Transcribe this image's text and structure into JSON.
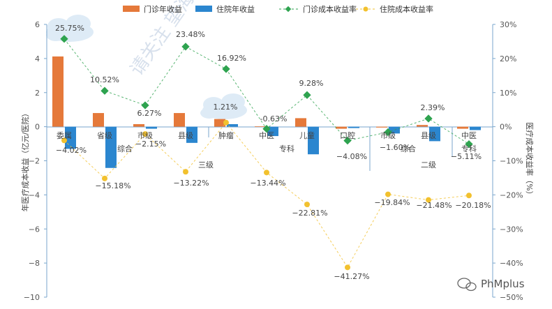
{
  "chart_data": {
    "type": "bar",
    "categories": [
      "委属",
      "省级",
      "市级",
      "县级",
      "肿瘤",
      "中医",
      "儿童",
      "口腔",
      "市级",
      "县级",
      "中医"
    ],
    "group_labels": [
      {
        "text": "综合",
        "from": 0,
        "to": 3
      },
      {
        "text": "三级",
        "from": 0,
        "to": 7
      },
      {
        "text": "专科",
        "from": 4,
        "to": 7
      },
      {
        "text": "综合",
        "from": 8,
        "to": 9
      },
      {
        "text": "二级",
        "from": 8,
        "to": 10
      },
      {
        "text": "专科",
        "from": 10,
        "to": 10
      }
    ],
    "series": [
      {
        "name": "门诊年收益",
        "kind": "bar",
        "axis": "left",
        "color": "#e5793a",
        "values": [
          4.12,
          0.8,
          0.15,
          0.8,
          0.45,
          0.02,
          0.5,
          -0.12,
          -0.05,
          0.1,
          -0.12
        ]
      },
      {
        "name": "住院年收益",
        "kind": "bar",
        "axis": "left",
        "color": "#2b86cf",
        "values": [
          -1.3,
          -2.42,
          -0.12,
          -0.95,
          0.15,
          -0.55,
          -1.62,
          -0.08,
          -0.4,
          -0.85,
          -0.2
        ]
      },
      {
        "name": "门诊成本收益率",
        "kind": "line",
        "axis": "right",
        "color": "#2ea34f",
        "values": [
          25.75,
          10.52,
          6.27,
          23.48,
          16.92,
          -0.63,
          9.28,
          -4.08,
          -1.6,
          2.39,
          -5.11
        ],
        "labels": [
          "25.75%",
          "10.52%",
          "6.27%",
          "23.48%",
          "16.92%",
          "-0.63%",
          "9.28%",
          "−4.08%",
          "−1.60%",
          "2.39%",
          "−5.11%"
        ]
      },
      {
        "name": "住院成本收益率",
        "kind": "line",
        "axis": "right",
        "color": "#f2c12e",
        "values": [
          -4.02,
          -15.18,
          -2.15,
          -13.22,
          1.21,
          -13.44,
          -22.81,
          -41.27,
          -19.84,
          -21.48,
          -20.18
        ],
        "labels": [
          "−4.02%",
          "−15.18%",
          "−2.15%",
          "−13.22%",
          "1.21%",
          "−13.44%",
          "−22.81%",
          "−41.27%",
          "−19.84%",
          "−21.48%",
          "−20.18%"
        ]
      }
    ],
    "ylabel": "年医疗成本收益（亿元/医院）",
    "y2label": "医疗成本收益率（%）",
    "ylim": [
      -10,
      6
    ],
    "y2lim": [
      -50,
      30
    ],
    "yticks": [
      "6",
      "4",
      "2",
      "0",
      "−2",
      "−4",
      "−6",
      "−8",
      "−10"
    ],
    "y2ticks": [
      "30%",
      "20%",
      "10%",
      "0%",
      "−10%",
      "−20%",
      "−30%",
      "−40%",
      "−50%"
    ],
    "legend_position": "top",
    "grid": false
  },
  "watermark": "请关注 望海",
  "brand": "PhMplus"
}
